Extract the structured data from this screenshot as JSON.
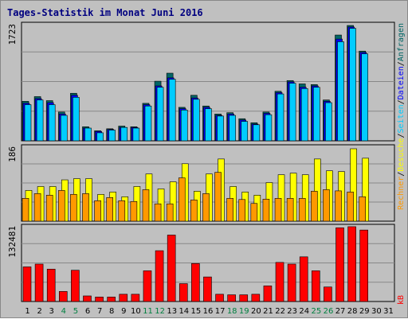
{
  "chart_data": {
    "type": "bar",
    "title": "Tages-Statistik im Monat Juni 2016",
    "categories": [
      "1",
      "2",
      "3",
      "4",
      "5",
      "6",
      "7",
      "8",
      "9",
      "10",
      "11",
      "12",
      "13",
      "14",
      "15",
      "16",
      "17",
      "18",
      "19",
      "20",
      "21",
      "22",
      "23",
      "24",
      "25",
      "26",
      "27",
      "28",
      "29",
      "30",
      "31"
    ],
    "weekend_days": [
      "4",
      "5",
      "11",
      "12",
      "18",
      "19",
      "25",
      "26"
    ],
    "panels": [
      {
        "name": "top",
        "ymax_label": "1723",
        "ylim": [
          0,
          1723
        ],
        "series": [
          {
            "name": "Anfragen",
            "color": "#006666",
            "values": [
              590,
              660,
              600,
              430,
              710,
              210,
              150,
              180,
              220,
              210,
              560,
              890,
              1010,
              500,
              680,
              520,
              400,
              420,
              330,
              270,
              430,
              740,
              900,
              850,
              840,
              610,
              1580,
              1723,
              1340,
              0,
              0
            ]
          },
          {
            "name": "Dateien",
            "color": "#0000ff",
            "values": [
              560,
              630,
              570,
              400,
              680,
              190,
              140,
              170,
              200,
              200,
              540,
              820,
              940,
              480,
              640,
              500,
              380,
              400,
              310,
              250,
              410,
              720,
              880,
              800,
              820,
              590,
              1520,
              1700,
              1320,
              0,
              0
            ]
          },
          {
            "name": "Seiten",
            "color": "#00ccff",
            "values": [
              540,
              610,
              540,
              380,
              650,
              190,
              120,
              160,
              200,
              190,
              520,
              800,
              920,
              460,
              620,
              480,
              370,
              380,
              290,
              240,
              390,
              700,
              860,
              780,
              800,
              570,
              1480,
              1680,
              1300,
              0,
              0
            ]
          }
        ]
      },
      {
        "name": "middle",
        "ymax_label": "186",
        "ylim": [
          0,
          186
        ],
        "series": [
          {
            "name": "Besuche",
            "color": "#ffff00",
            "values": [
              78,
              88,
              88,
              105,
              108,
              108,
              68,
              74,
              62,
              88,
              120,
              82,
              100,
              146,
              76,
              120,
              158,
              88,
              74,
              66,
              98,
              118,
              122,
              118,
              158,
              128,
              126,
              184,
              160,
              0,
              0
            ]
          },
          {
            "name": "Rechner",
            "color": "#ff9900",
            "values": [
              58,
              70,
              66,
              78,
              68,
              70,
              52,
              60,
              52,
              50,
              80,
              44,
              44,
              110,
              54,
              70,
              124,
              58,
              55,
              45,
              56,
              58,
              58,
              58,
              76,
              80,
              77,
              74,
              62,
              0,
              0
            ]
          }
        ]
      },
      {
        "name": "bottom",
        "ymax_label": "132481",
        "ylim": [
          0,
          132481
        ],
        "series": [
          {
            "name": "kB",
            "color": "#ff0000",
            "values": [
              62000,
              67000,
              58000,
              18000,
              56000,
              10000,
              8000,
              8000,
              13000,
              13000,
              55000,
              91000,
              119000,
              32000,
              68000,
              44000,
              13000,
              12000,
              12000,
              13000,
              28000,
              70000,
              67000,
              80000,
              55000,
              26000,
              132000,
              134000,
              128000,
              0,
              0
            ]
          }
        ]
      }
    ],
    "right_legend_top": [
      "Anfragen",
      "Dateien",
      "Seiten"
    ],
    "right_legend_mid": [
      "Besuche",
      "Rechner"
    ],
    "right_legend_bottom": [
      "kB"
    ]
  }
}
